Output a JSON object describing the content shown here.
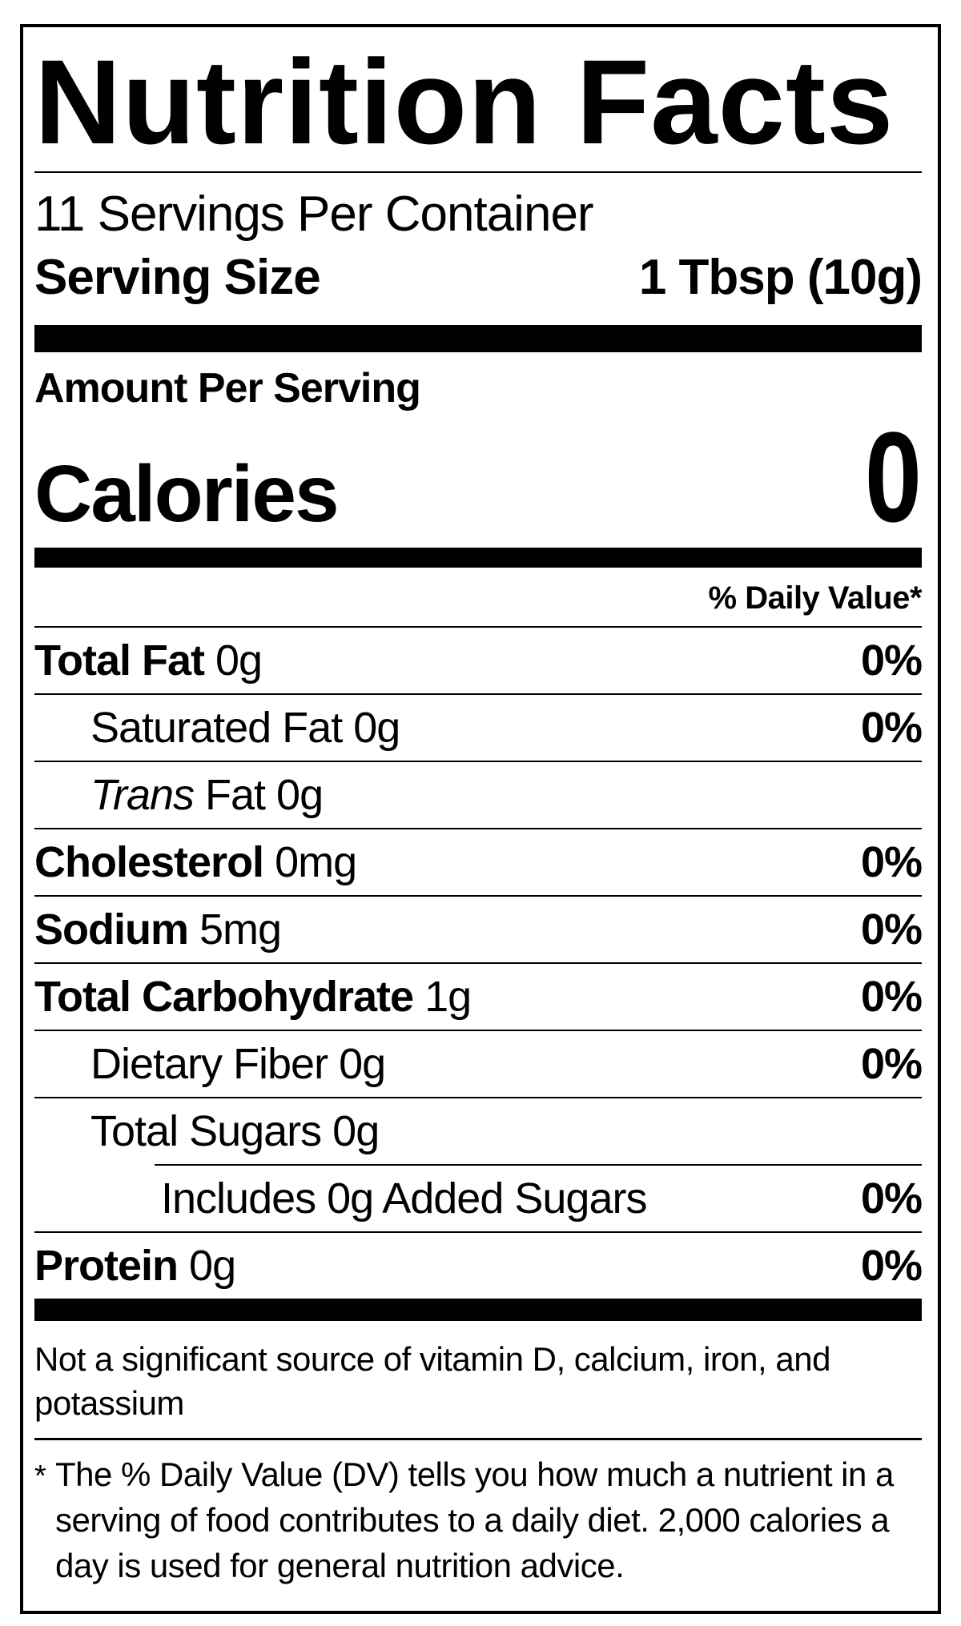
{
  "title": "Nutrition Facts",
  "servings_per_container": "11 Servings Per Container",
  "serving_size": {
    "label": "Serving Size",
    "value": "1 Tbsp (10g)"
  },
  "amount_per_serving": "Amount Per Serving",
  "calories": {
    "label": "Calories",
    "value": "0"
  },
  "daily_value_header": "% Daily Value*",
  "nutrients": [
    {
      "bold": "Total Fat",
      "italic": "",
      "rest": " 0g",
      "dv": "0%"
    },
    {
      "bold": "",
      "italic": "",
      "rest": "Saturated Fat 0g",
      "dv": "0%"
    },
    {
      "bold": "",
      "italic": "Trans",
      "rest": " Fat 0g",
      "dv": ""
    },
    {
      "bold": "Cholesterol",
      "italic": "",
      "rest": " 0mg",
      "dv": "0%"
    },
    {
      "bold": "Sodium",
      "italic": "",
      "rest": " 5mg",
      "dv": "0%"
    },
    {
      "bold": "Total Carbohydrate",
      "italic": "",
      "rest": " 1g",
      "dv": "0%"
    },
    {
      "bold": "",
      "italic": "",
      "rest": "Dietary Fiber 0g",
      "dv": "0%"
    },
    {
      "bold": "",
      "italic": "",
      "rest": "Total Sugars 0g",
      "dv": ""
    },
    {
      "bold": "",
      "italic": "",
      "rest": "Includes 0g Added Sugars",
      "dv": "0%"
    },
    {
      "bold": "Protein",
      "italic": "",
      "rest": " 0g",
      "dv": "0%"
    }
  ],
  "not_significant_source": "Not a significant source of vitamin D, calcium, iron, and potassium",
  "footnote": {
    "marker": "*",
    "text": "The % Daily Value (DV) tells you how much a nutrient in a serving of food contributes to a daily diet. 2,000 calories a day is used for general nutrition advice."
  },
  "colors": {
    "text": "#000000",
    "background": "#ffffff",
    "rule": "#000000"
  }
}
